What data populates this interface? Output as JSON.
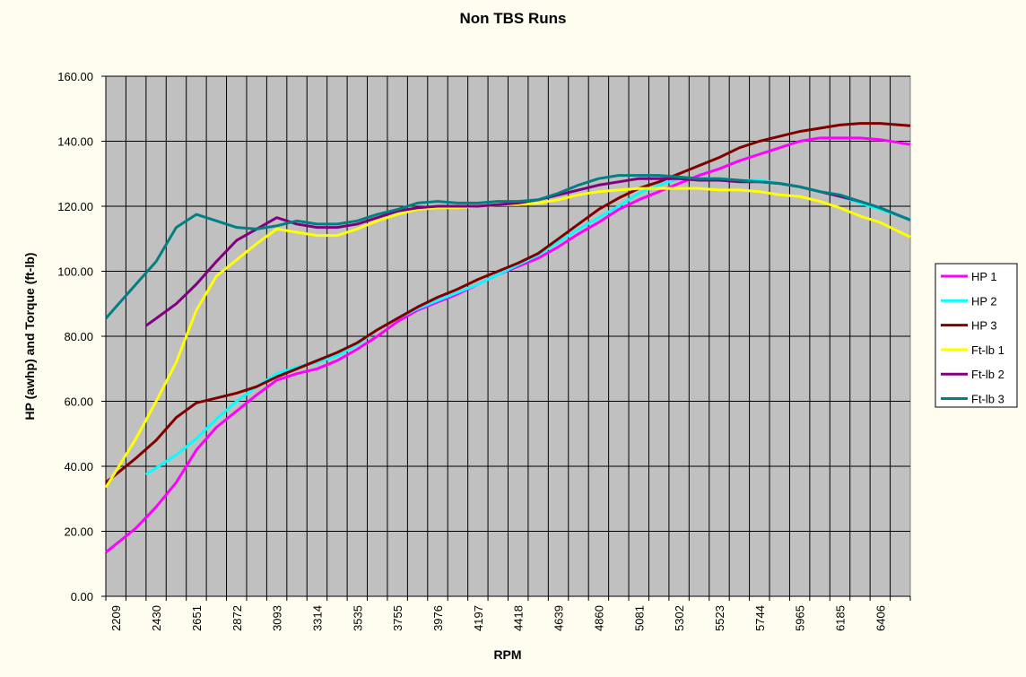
{
  "chart_data": {
    "type": "line",
    "title": "Non TBS Runs",
    "xlabel": "RPM",
    "ylabel": "HP (awhp) and Torque (ft-lb)",
    "ylim": [
      0,
      160
    ],
    "y_ticks": [
      "0.00",
      "20.00",
      "40.00",
      "60.00",
      "80.00",
      "100.00",
      "120.00",
      "140.00",
      "160.00"
    ],
    "x_tick_labels": [
      "2209",
      "2430",
      "2651",
      "2872",
      "3093",
      "3314",
      "3535",
      "3755",
      "3976",
      "4197",
      "4418",
      "4639",
      "4860",
      "5081",
      "5302",
      "5523",
      "5744",
      "5965",
      "6185",
      "6406"
    ],
    "categories": [
      2209,
      2319,
      2430,
      2540,
      2651,
      2761,
      2872,
      2982,
      3093,
      3203,
      3314,
      3424,
      3535,
      3645,
      3755,
      3866,
      3976,
      4086,
      4197,
      4307,
      4418,
      4528,
      4639,
      4749,
      4860,
      4970,
      5081,
      5191,
      5302,
      5412,
      5523,
      5633,
      5744,
      5854,
      5965,
      6075,
      6185,
      6296,
      6406,
      6516
    ],
    "grid": true,
    "legend_position": "right",
    "plot_background": "#c0c0c0",
    "series": [
      {
        "name": "HP 1",
        "color": "#ff00ff",
        "values": [
          16,
          21,
          27.5,
          35,
          45,
          52,
          57,
          62,
          66.5,
          68.5,
          70,
          72.5,
          76,
          80,
          84.5,
          88,
          90.5,
          93,
          96,
          99,
          101.5,
          104,
          107.5,
          111.5,
          115,
          119,
          122,
          124.5,
          127,
          129.5,
          131.5,
          134,
          136,
          138,
          140,
          141,
          141,
          141,
          140.5,
          139.5
        ]
      },
      {
        "name": "HP 2",
        "color": "#00ffff",
        "values": [
          null,
          null,
          39.5,
          43.5,
          48.5,
          54.5,
          60,
          64.5,
          68.5,
          70.5,
          72,
          74,
          77.5,
          82,
          85.5,
          88.5,
          91,
          93.5,
          96,
          99,
          102,
          105,
          109,
          113,
          116.5,
          120,
          124,
          126.5,
          128.5,
          128.5,
          128.5,
          128,
          128,
          127,
          126,
          124.5,
          123,
          121,
          119,
          117
        ]
      },
      {
        "name": "HP 3",
        "color": "#800000",
        "values": [
          37.5,
          42.5,
          48,
          55,
          59.5,
          61,
          62.5,
          64.5,
          67.5,
          70,
          72.5,
          75,
          78,
          82,
          85.5,
          89,
          92,
          94.5,
          97.5,
          100,
          102.5,
          105.5,
          110,
          114.5,
          119,
          122.5,
          125.5,
          127.5,
          130,
          132.5,
          135,
          138,
          140,
          141.5,
          143,
          144,
          145,
          145.5,
          145.5,
          145
        ]
      },
      {
        "name": "Ft-lb 1",
        "color": "#ffff00",
        "values": [
          38.5,
          48.5,
          60,
          72,
          88,
          98.5,
          103.5,
          108.5,
          113,
          112,
          111,
          111,
          113,
          115.5,
          117.5,
          119,
          119.5,
          119.5,
          120,
          120.5,
          120.5,
          121,
          122,
          123.5,
          124.5,
          125,
          125.5,
          125.5,
          125.5,
          125.5,
          125,
          125,
          124.5,
          123.5,
          123,
          121.5,
          119.5,
          117,
          115,
          112
        ]
      },
      {
        "name": "Ft-lb 2",
        "color": "#800080",
        "values": [
          null,
          null,
          85.5,
          90,
          96,
          103,
          109.5,
          113,
          116.5,
          114.5,
          113.5,
          113.5,
          114.5,
          116.5,
          118.5,
          119.5,
          120,
          120,
          120,
          120.5,
          121,
          122,
          123.5,
          125,
          126.5,
          127.5,
          128.5,
          128.5,
          128.5,
          128,
          128,
          127.5,
          127.5,
          127,
          126,
          124.5,
          123,
          121.5,
          119.5,
          117
        ]
      },
      {
        "name": "Ft-lb 3",
        "color": "#008080",
        "values": [
          89,
          96,
          103,
          113.5,
          117.5,
          115.5,
          113.5,
          113,
          114,
          115.5,
          114.5,
          114.5,
          115.5,
          117.5,
          119,
          121,
          121.5,
          121,
          121,
          121.5,
          121.5,
          122,
          124,
          126.5,
          128.5,
          129.5,
          129.5,
          129.5,
          129,
          128.5,
          128.5,
          128,
          127.5,
          127,
          126,
          124.5,
          123.5,
          121.5,
          119.5,
          117
        ]
      }
    ]
  }
}
